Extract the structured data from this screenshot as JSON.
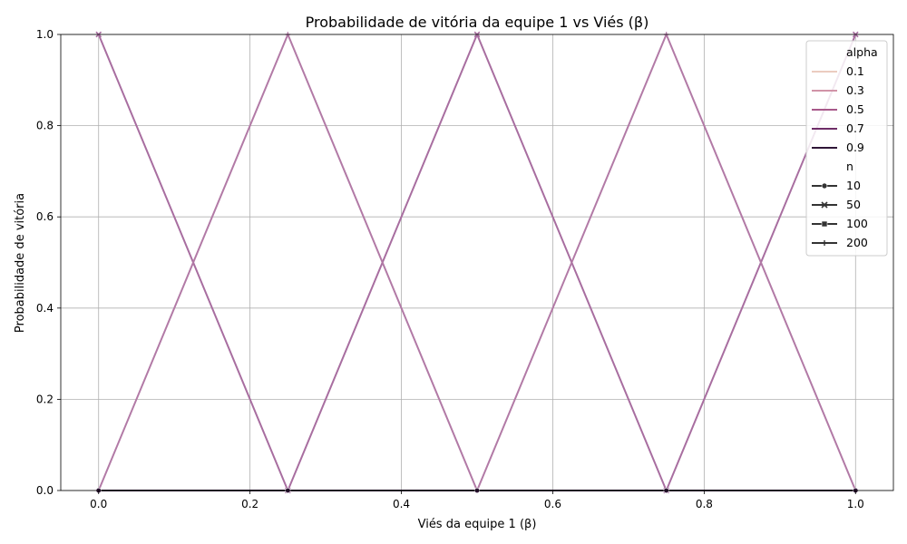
{
  "chart_data": {
    "type": "line",
    "title": "Probabilidade de vitória da equipe 1 vs Viés (β)",
    "xlabel": "Viés da equipe 1 (β)",
    "ylabel": "Probabilidade de vitória",
    "xlim": [
      -0.05,
      1.05
    ],
    "ylim": [
      0.0,
      1.0
    ],
    "xticks": [
      "0.0",
      "0.2",
      "0.4",
      "0.6",
      "0.8",
      "1.0"
    ],
    "yticks": [
      "0.0",
      "0.2",
      "0.4",
      "0.6",
      "0.8",
      "1.0"
    ],
    "grid": true,
    "legend_position": "top-right",
    "x": [
      0.0,
      0.25,
      0.5,
      0.75,
      1.0
    ],
    "hue": {
      "title": "alpha",
      "levels": [
        {
          "label": "0.1",
          "color": "#ebccc0"
        },
        {
          "label": "0.3",
          "color": "#d194a8"
        },
        {
          "label": "0.5",
          "color": "#a8588a"
        },
        {
          "label": "0.7",
          "color": "#6e2d68"
        },
        {
          "label": "0.9",
          "color": "#2f1537"
        }
      ]
    },
    "style": {
      "title": "n",
      "levels": [
        {
          "label": "10",
          "marker": "circle"
        },
        {
          "label": "50",
          "marker": "x"
        },
        {
          "label": "100",
          "marker": "square"
        },
        {
          "label": "200",
          "marker": "plus"
        }
      ]
    },
    "series": [
      {
        "hue": "0.3",
        "color": "#a86ea0",
        "marker": "x",
        "values": [
          1.0,
          0.0,
          1.0,
          0.0,
          1.0
        ]
      },
      {
        "hue": "0.3",
        "color": "#b27aa6",
        "marker": "plus",
        "values": [
          0.0,
          1.0,
          0.0,
          1.0,
          0.0
        ]
      },
      {
        "hue": "0.9",
        "color": "#2f1537",
        "marker": "circle",
        "values": [
          0.0,
          0.0,
          0.0,
          0.0,
          0.0
        ]
      }
    ]
  }
}
